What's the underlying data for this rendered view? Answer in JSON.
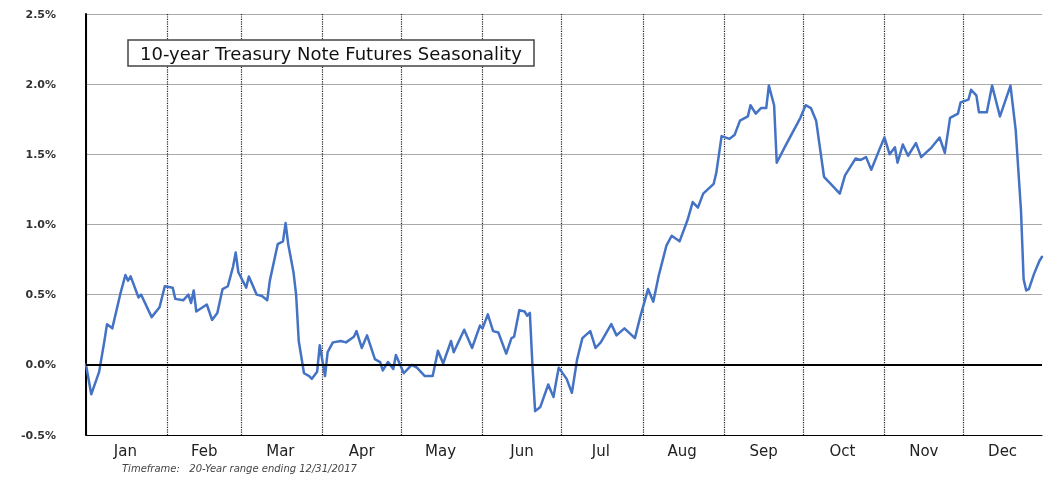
{
  "chart_data": {
    "type": "line",
    "title": "10-year Treasury Note Futures Seasonality",
    "annotations": [
      "Timeframe:   20-Year range ending 12/31/2017"
    ],
    "x": [
      "--01-01",
      "--01-03",
      "--01-06",
      "--01-08",
      "--01-09",
      "--01-11",
      "--01-14",
      "--01-16",
      "--01-17",
      "--01-18",
      "--01-21",
      "--01-22",
      "--01-26",
      "--01-29",
      "--01-31",
      "--02-03",
      "--02-04",
      "--02-07",
      "--02-09",
      "--02-10",
      "--02-11",
      "--02-12",
      "--02-16",
      "--02-18",
      "--02-20",
      "--02-22",
      "--02-24",
      "--02-26",
      "--02-27",
      "--02-28",
      "--03-03",
      "--03-04",
      "--03-07",
      "--03-09",
      "--03-11",
      "--03-12",
      "--03-15",
      "--03-17",
      "--03-18",
      "--03-19",
      "--03-21",
      "--03-22",
      "--03-23",
      "--03-25",
      "--03-27",
      "--03-28",
      "--03-30",
      "--03-31",
      "--04-02",
      "--04-03",
      "--04-05",
      "--04-08",
      "--04-10",
      "--04-13",
      "--04-14",
      "--04-16",
      "--04-18",
      "--04-21",
      "--04-23",
      "--04-24",
      "--04-26",
      "--04-28",
      "--04-29",
      "--05-02",
      "--05-05",
      "--05-07",
      "--05-10",
      "--05-13",
      "--05-15",
      "--05-17",
      "--05-20",
      "--05-21",
      "--05-25",
      "--05-28",
      "--05-31",
      "--06-01",
      "--06-03",
      "--06-05",
      "--06-07",
      "--06-10",
      "--06-12",
      "--06-13",
      "--06-15",
      "--06-17",
      "--06-18",
      "--06-19",
      "--06-20",
      "--06-21",
      "--06-23",
      "--06-26",
      "--06-28",
      "--06-29",
      "--06-30",
      "--07-03",
      "--07-05",
      "--07-07",
      "--07-09",
      "--07-12",
      "--07-14",
      "--07-16",
      "--07-20",
      "--07-22",
      "--07-25",
      "--07-29",
      "--07-31",
      "--08-03",
      "--08-05",
      "--08-07",
      "--08-10",
      "--08-12",
      "--08-15",
      "--08-18",
      "--08-20",
      "--08-22",
      "--08-24",
      "--08-28",
      "--08-29",
      "--08-31",
      "--09-03",
      "--09-05",
      "--09-07",
      "--09-10",
      "--09-11",
      "--09-13",
      "--09-15",
      "--09-17",
      "--09-18",
      "--09-20",
      "--09-21",
      "--09-24",
      "--09-30",
      "--10-02",
      "--10-04",
      "--10-06",
      "--10-09",
      "--10-12",
      "--10-15",
      "--10-17",
      "--10-21",
      "--10-23",
      "--10-25",
      "--10-27",
      "--10-30",
      "--11-01",
      "--11-03",
      "--11-05",
      "--11-06",
      "--11-08",
      "--11-10",
      "--11-13",
      "--11-15",
      "--11-19",
      "--11-22",
      "--11-24",
      "--11-26",
      "--11-29",
      "--11-30",
      "--12-03",
      "--12-04",
      "--12-06",
      "--12-07",
      "--12-10",
      "--12-12",
      "--12-15",
      "--12-19",
      "--12-21",
      "--12-23",
      "--12-24",
      "--12-25",
      "--12-26",
      "--12-28",
      "--12-30",
      "--12-31"
    ],
    "series": [
      {
        "color": "#4472c4",
        "values": [
          0,
          -0.21,
          -0.05,
          0.17,
          0.29,
          0.26,
          0.5,
          0.64,
          0.6,
          0.63,
          0.48,
          0.5,
          0.34,
          0.41,
          0.56,
          0.55,
          0.47,
          0.46,
          0.5,
          0.44,
          0.53,
          0.38,
          0.43,
          0.32,
          0.37,
          0.54,
          0.56,
          0.7,
          0.8,
          0.66,
          0.55,
          0.63,
          0.5,
          0.49,
          0.46,
          0.6,
          0.86,
          0.88,
          1.01,
          0.86,
          0.66,
          0.5,
          0.17,
          -0.06,
          -0.08,
          -0.1,
          -0.05,
          0.14,
          -0.08,
          0.09,
          0.16,
          0.17,
          0.16,
          0.2,
          0.24,
          0.12,
          0.21,
          0.04,
          0.02,
          -0.04,
          0.02,
          -0.03,
          0.07,
          -0.06,
          0,
          -0.02,
          -0.08,
          -0.08,
          0.1,
          0.01,
          0.17,
          0.09,
          0.25,
          0.12,
          0.28,
          0.26,
          0.36,
          0.24,
          0.23,
          0.08,
          0.19,
          0.2,
          0.39,
          0.38,
          0.35,
          0.37,
          -0.01,
          -0.33,
          -0.3,
          -0.14,
          -0.23,
          -0.12,
          -0.02,
          -0.1,
          -0.2,
          0.04,
          0.19,
          0.24,
          0.12,
          0.16,
          0.29,
          0.21,
          0.26,
          0.19,
          0.34,
          0.54,
          0.45,
          0.63,
          0.85,
          0.92,
          0.88,
          1.03,
          1.16,
          1.12,
          1.22,
          1.29,
          1.37,
          1.63,
          1.61,
          1.64,
          1.74,
          1.77,
          1.85,
          1.79,
          1.83,
          1.83,
          1.99,
          1.85,
          1.44,
          1.55,
          1.76,
          1.85,
          1.83,
          1.74,
          1.34,
          1.28,
          1.22,
          1.35,
          1.47,
          1.46,
          1.48,
          1.39,
          1.53,
          1.62,
          1.5,
          1.55,
          1.44,
          1.57,
          1.49,
          1.58,
          1.48,
          1.55,
          1.62,
          1.51,
          1.76,
          1.79,
          1.87,
          1.89,
          1.96,
          1.92,
          1.8,
          1.8,
          1.99,
          1.77,
          1.99,
          1.67,
          1.1,
          0.61,
          0.53,
          0.54,
          0.65,
          0.74,
          0.77
        ]
      }
    ],
    "xlim": [
      "--01-01",
      "--12-31"
    ],
    "xticks": [
      {
        "value": "--01-01",
        "label": null
      },
      {
        "value": "--01-16",
        "label": "Jan"
      },
      {
        "value": "--02-01",
        "label": null
      },
      {
        "value": "--02-15",
        "label": "Feb"
      },
      {
        "value": "--03-01",
        "label": null
      },
      {
        "value": "--03-16",
        "label": "Mar"
      },
      {
        "value": "--04-01",
        "label": null
      },
      {
        "value": "--04-16",
        "label": "Apr"
      },
      {
        "value": "--05-01",
        "label": null
      },
      {
        "value": "--05-16",
        "label": "May"
      },
      {
        "value": "--06-01",
        "label": null
      },
      {
        "value": "--06-16",
        "label": "Jun"
      },
      {
        "value": "--07-01",
        "label": null
      },
      {
        "value": "--07-16",
        "label": "Jul"
      },
      {
        "value": "--08-01",
        "label": null
      },
      {
        "value": "--08-16",
        "label": "Aug"
      },
      {
        "value": "--09-01",
        "label": null
      },
      {
        "value": "--09-16",
        "label": "Sep"
      },
      {
        "value": "--10-01",
        "label": null
      },
      {
        "value": "--10-16",
        "label": "Oct"
      },
      {
        "value": "--11-01",
        "label": null
      },
      {
        "value": "--11-16",
        "label": "Nov"
      },
      {
        "value": "--12-01",
        "label": null
      },
      {
        "value": "--12-16",
        "label": "Dec"
      }
    ],
    "ylim": [
      -0.5,
      2.5
    ],
    "yticks": [
      {
        "value": -0.5,
        "label": "-0.5%"
      },
      {
        "value": 0,
        "label": "0.0%"
      },
      {
        "value": 0.5,
        "label": "0.5%"
      },
      {
        "value": 1,
        "label": "1.0%"
      },
      {
        "value": 1.5,
        "label": "1.5%"
      },
      {
        "value": 2,
        "label": "2.0%"
      },
      {
        "value": 2.5,
        "label": "2.5%"
      }
    ],
    "ref_lines": [
      {
        "axis": "y",
        "value": 0,
        "color": "#000000"
      }
    ],
    "grid": true,
    "marker": "none",
    "line_style": "solid"
  }
}
